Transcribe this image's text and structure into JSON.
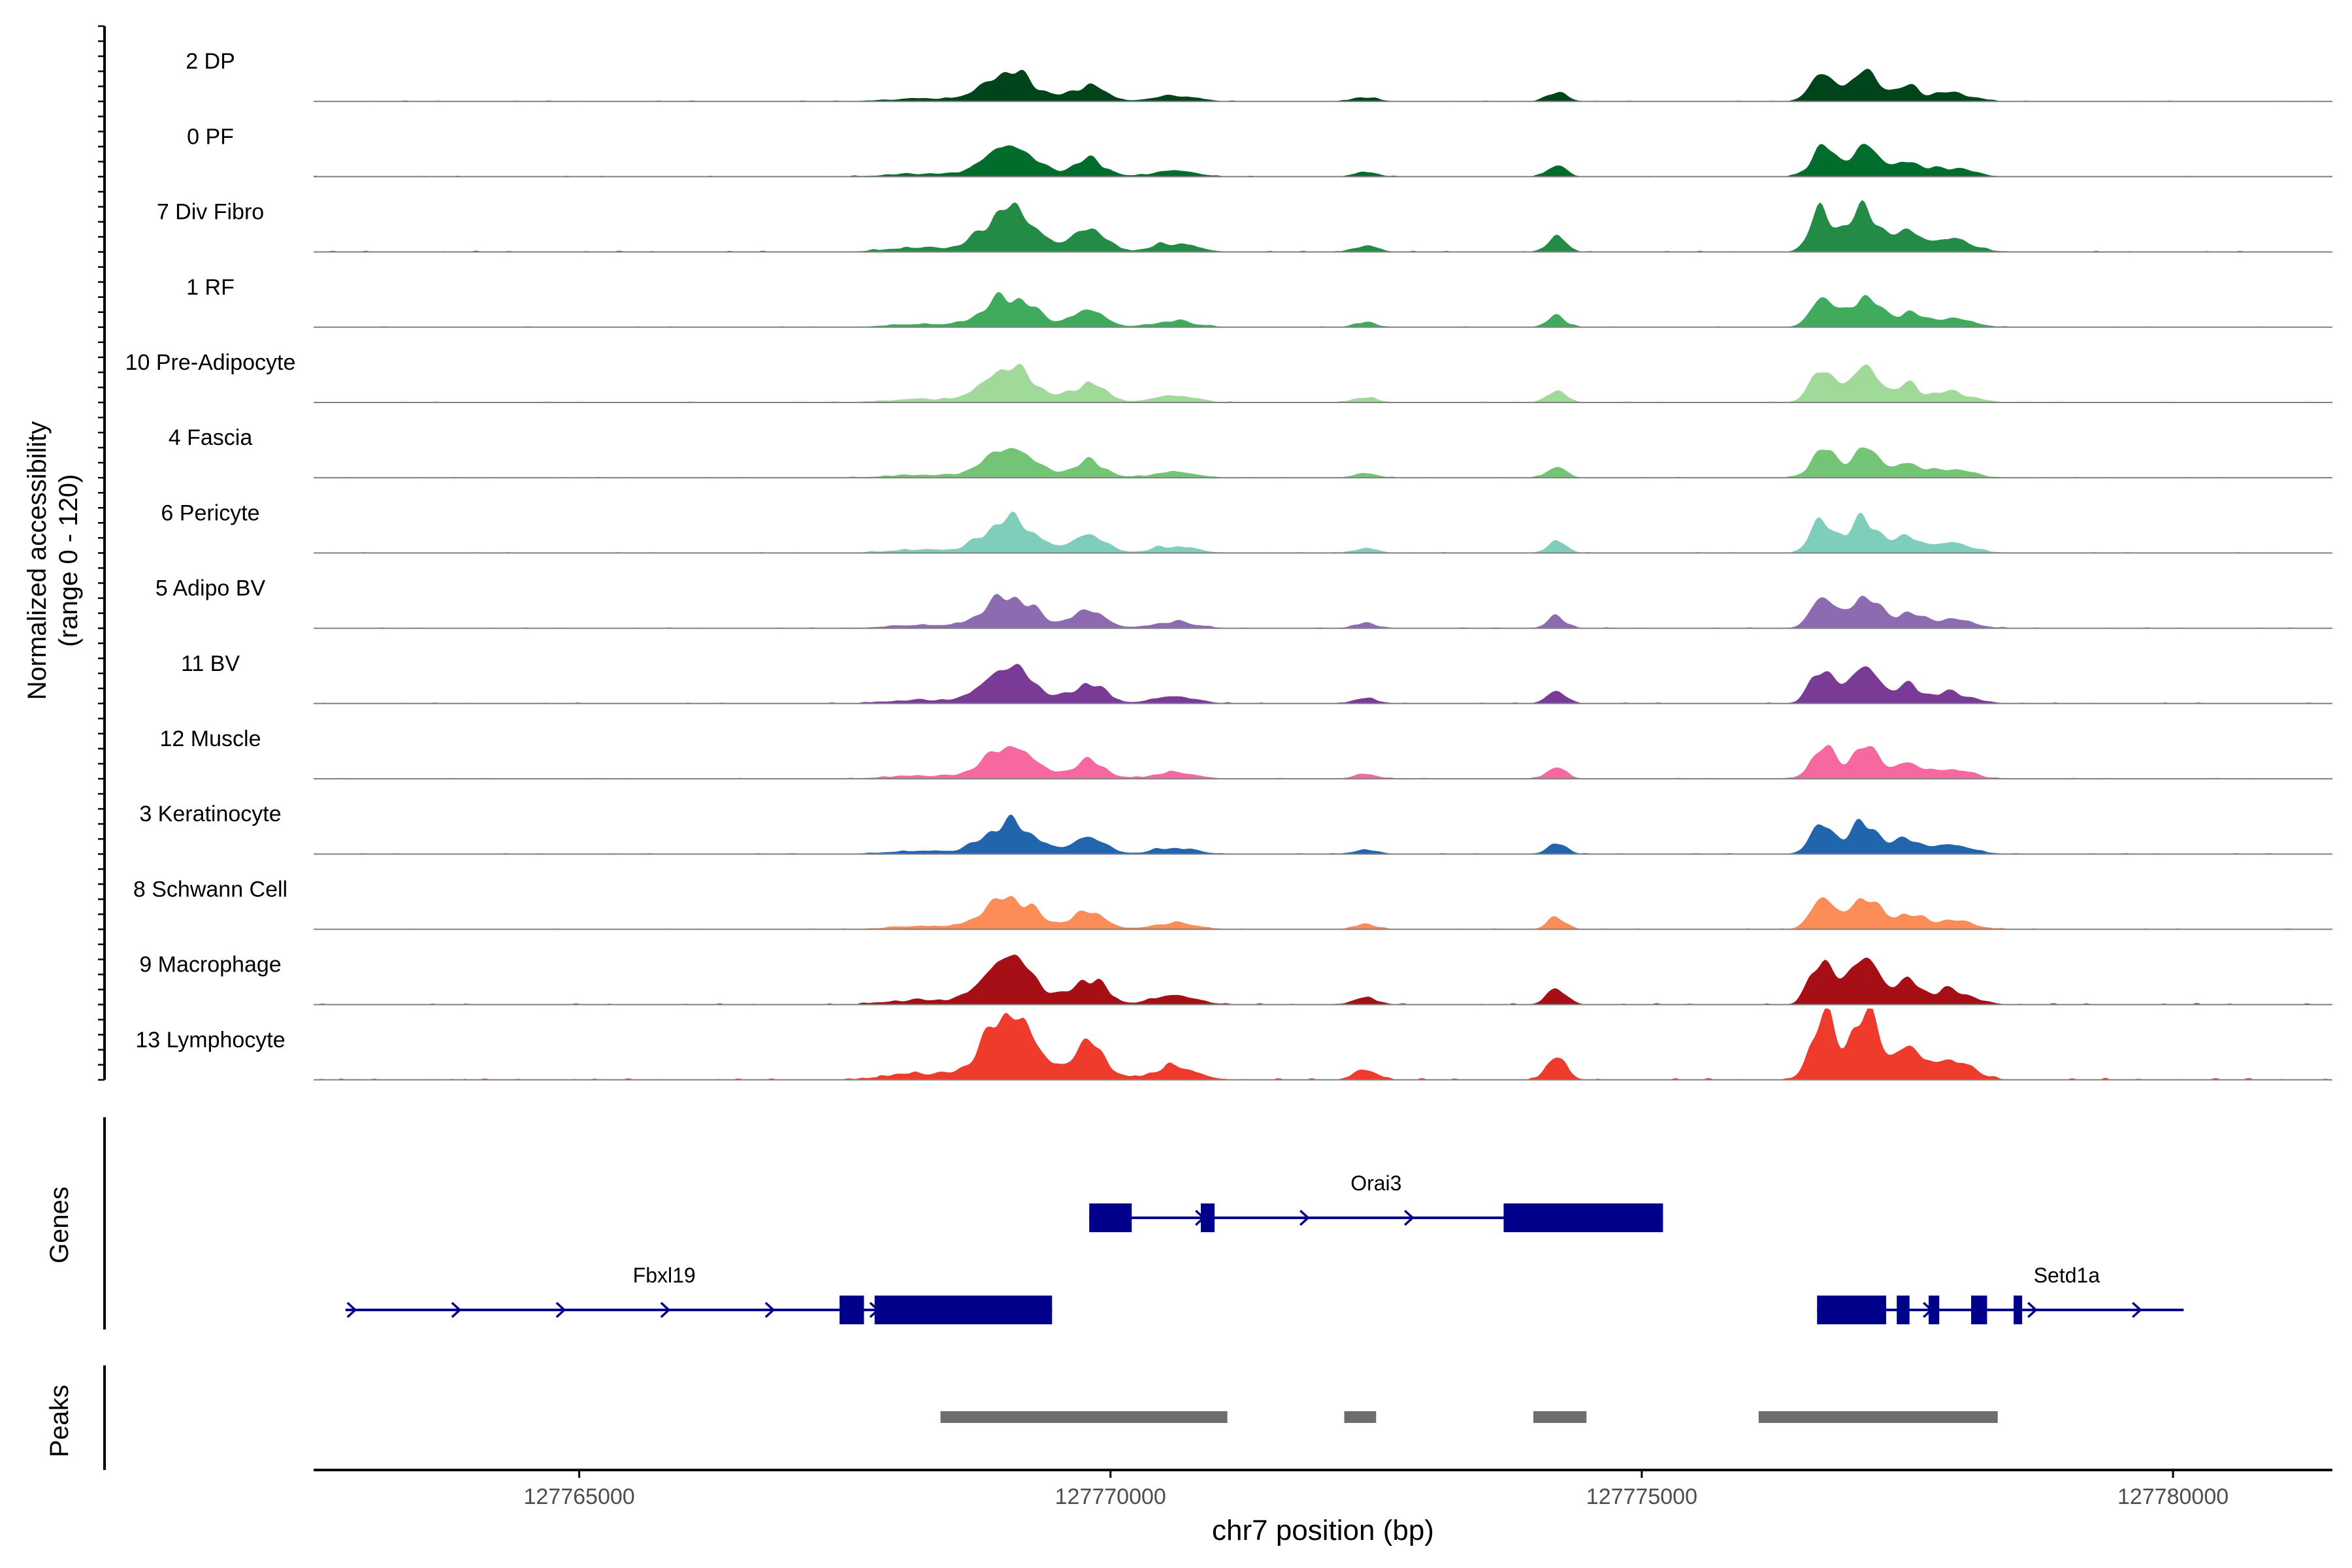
{
  "chart_data": {
    "type": "area",
    "title": "",
    "ylabel_line1": "Normalized accessibility",
    "ylabel_line2": "(range 0 - 120)",
    "ylim": [
      0,
      120
    ],
    "xlabel": "chr7 position (bp)",
    "xlim": [
      127762500,
      127781500
    ],
    "x_ticks": [
      127765000,
      127770000,
      127775000,
      127780000
    ],
    "x_tick_labels": [
      "127765000",
      "127770000",
      "127775000",
      "127780000"
    ],
    "series": [
      {
        "name": "2 DP",
        "color": "#00441b",
        "scale": 0.42
      },
      {
        "name": "0 PF",
        "color": "#006d2c",
        "scale": 0.44
      },
      {
        "name": "7 Div Fibro",
        "color": "#238b45",
        "scale": 0.62
      },
      {
        "name": "1 RF",
        "color": "#41ab5d",
        "scale": 0.44
      },
      {
        "name": "10 Pre-Adipocyte",
        "color": "#a1d99b",
        "scale": 0.5
      },
      {
        "name": "4 Fascia",
        "color": "#74c476",
        "scale": 0.42
      },
      {
        "name": "6 Pericyte",
        "color": "#7fcdbb",
        "scale": 0.48
      },
      {
        "name": "5 Adipo BV",
        "color": "#8c6bb1",
        "scale": 0.46
      },
      {
        "name": "11 BV",
        "color": "#7a3b96",
        "scale": 0.52
      },
      {
        "name": "12 Muscle",
        "color": "#f768a1",
        "scale": 0.46
      },
      {
        "name": "3 Keratinocyte",
        "color": "#2166ac",
        "scale": 0.44
      },
      {
        "name": "8 Schwann Cell",
        "color": "#fc8d59",
        "scale": 0.46
      },
      {
        "name": "9 Macrophage",
        "color": "#a50f15",
        "scale": 0.68
      },
      {
        "name": "13 Lymphocyte",
        "color": "#ef3b2c",
        "scale": 0.95
      }
    ],
    "track_labels": {
      "genes": "Genes",
      "peaks": "Peaks"
    },
    "genes": [
      {
        "name": "Orai3",
        "strand": "+",
        "start": 127769800,
        "end": 127775200,
        "row": 0,
        "exons": [
          [
            127769800,
            127770200
          ],
          [
            127770850,
            127770980
          ],
          [
            127773700,
            127775200
          ]
        ]
      },
      {
        "name": "Fbxl19",
        "strand": "+",
        "start": 127762800,
        "end": 127769450,
        "row": 1,
        "exons": [
          [
            127767450,
            127767680
          ],
          [
            127767780,
            127769450
          ]
        ]
      },
      {
        "name": "Setd1a",
        "strand": "+",
        "start": 127776650,
        "end": 127780100,
        "row": 1,
        "exons": [
          [
            127776650,
            127777300
          ],
          [
            127777400,
            127777520
          ],
          [
            127777700,
            127777800
          ],
          [
            127778100,
            127778250
          ],
          [
            127778500,
            127778580
          ]
        ]
      }
    ],
    "peaks": [
      [
        127768400,
        127771100
      ],
      [
        127772200,
        127772500
      ],
      [
        127773980,
        127774480
      ],
      [
        127776100,
        127778350
      ]
    ],
    "accent_colors": {
      "gene": "#00008b",
      "peak": "#6e6e6e",
      "baseline": "#808080"
    }
  }
}
